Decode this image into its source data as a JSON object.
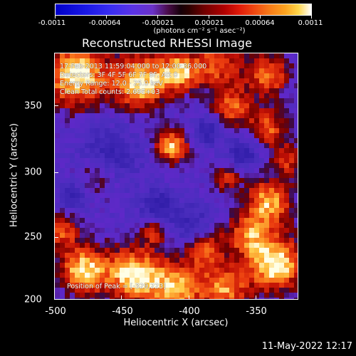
{
  "colorbar": {
    "ticks": [
      "-0.0011",
      "-0.00064",
      "-0.00021",
      "0.00021",
      "0.00064",
      "0.0011"
    ],
    "units": "(photons cm⁻² s⁻¹ asec⁻²)"
  },
  "title": "Reconstructed RHESSI Image",
  "annotations": {
    "line1": "17-Feb-2013 11:59:04.000 to 12:00:36.000",
    "line2": "Detectors: 3F 4F 5F 6F 7F 8F, Att 0",
    "line3": "Energy Range: 12.0 - 25.0 keV",
    "line4": "Clean     Total counts: 2.69E+03",
    "peak": "Position of Peak = [-329,223]"
  },
  "axes": {
    "xlabel": "Heliocentric X (arcsec)",
    "ylabel": "Heliocentric Y (arcsec)",
    "xticks": [
      "-500",
      "-450",
      "-400",
      "-350"
    ],
    "yticks": [
      "350",
      "300",
      "250",
      "200"
    ]
  },
  "footer": "11-May-2022 12:17"
}
